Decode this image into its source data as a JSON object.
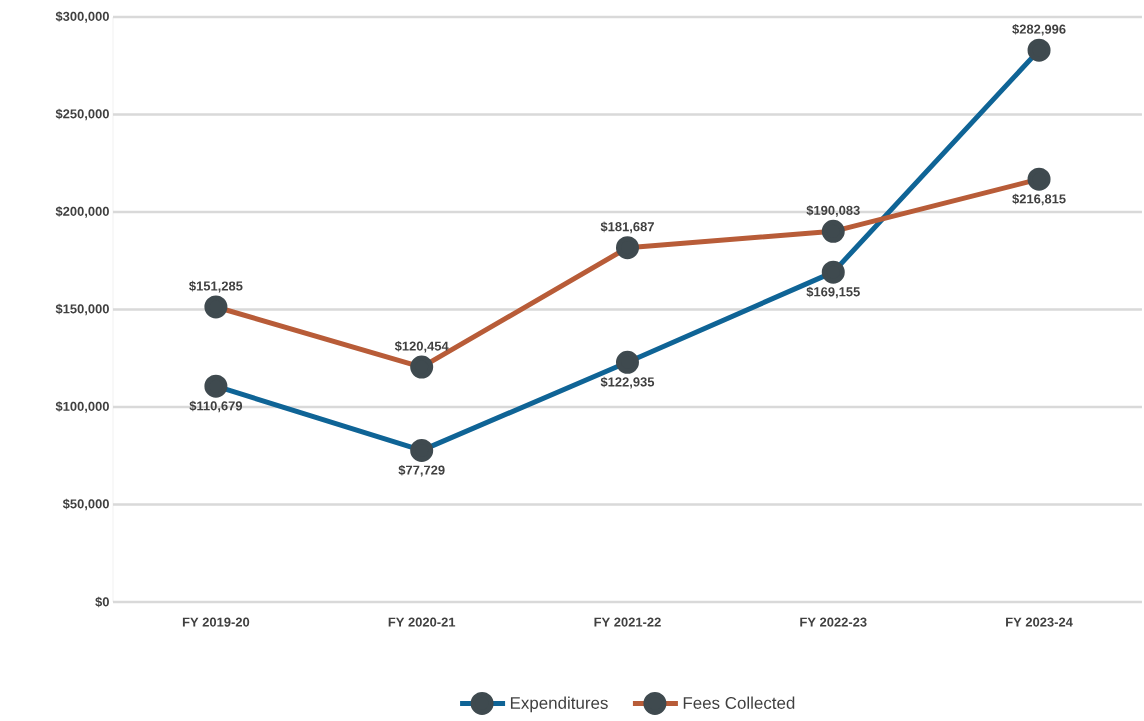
{
  "chart_data": {
    "type": "line",
    "categories": [
      "FY 2019-20",
      "FY 2020-21",
      "FY 2021-22",
      "FY 2022-23",
      "FY 2023-24"
    ],
    "series": [
      {
        "name": "Expenditures",
        "color": "#0f6496",
        "values": [
          110679,
          77729,
          122935,
          169155,
          282996
        ],
        "value_labels": [
          "$110,679",
          "$77,729",
          "$122,935",
          "$169,155",
          "$282,996"
        ]
      },
      {
        "name": "Fees Collected",
        "color": "#b85c38",
        "values": [
          151285,
          120454,
          181687,
          190083,
          216815
        ],
        "value_labels": [
          "$151,285",
          "$120,454",
          "$181,687",
          "$190,083",
          "$216,815"
        ]
      }
    ],
    "ylim": [
      0,
      300000
    ],
    "yticks": [
      {
        "value": 0,
        "label": "$0"
      },
      {
        "value": 50000,
        "label": "$50,000"
      },
      {
        "value": 100000,
        "label": "$100,000"
      },
      {
        "value": 150000,
        "label": "$150,000"
      },
      {
        "value": 200000,
        "label": "$200,000"
      },
      {
        "value": 250000,
        "label": "$250,000"
      },
      {
        "value": 300000,
        "label": "$300,000"
      }
    ],
    "grid": "y",
    "legend": "bottom",
    "marker": "circle",
    "line_style": "solid"
  }
}
